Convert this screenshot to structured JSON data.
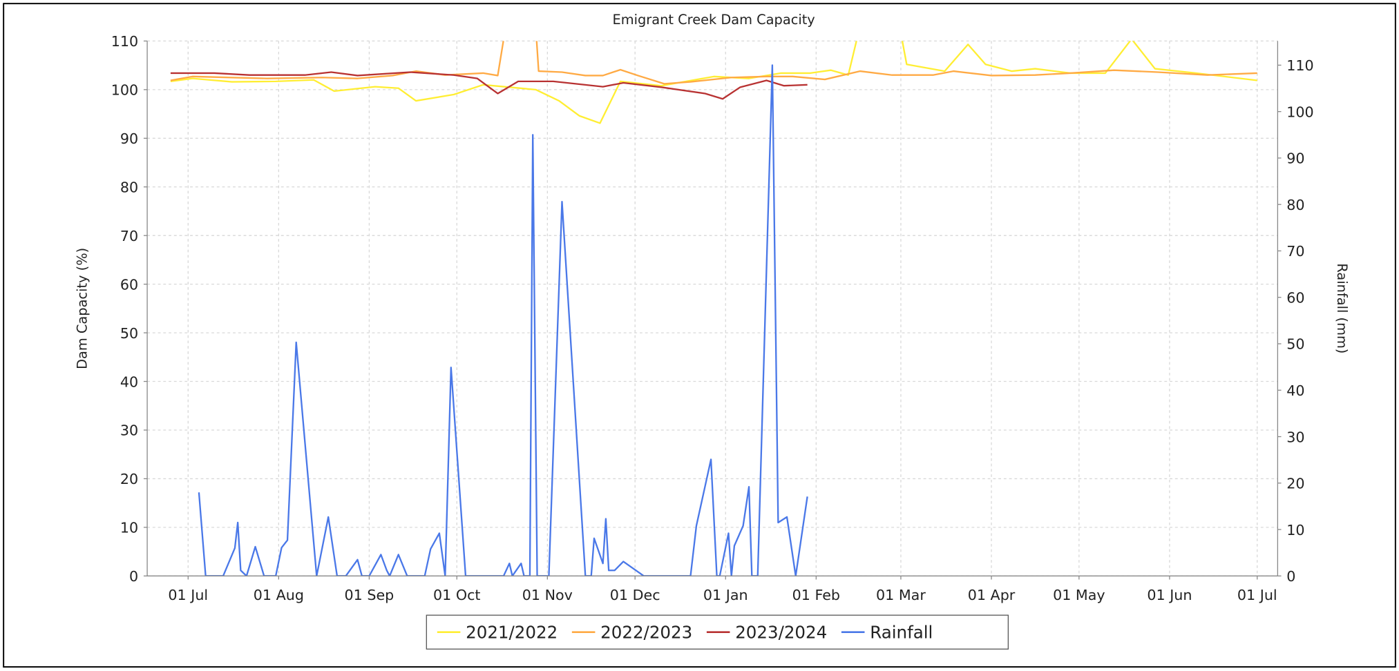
{
  "chart_data": {
    "type": "line",
    "title": "Emigrant Creek Dam Capacity",
    "y_label": "Dam Capacity (%)",
    "y2_label": "Rainfall (mm)",
    "xlim": [
      -14,
      373
    ],
    "xticks": [
      {
        "value": 0,
        "label": "01 Jul"
      },
      {
        "value": 31,
        "label": "01 Aug"
      },
      {
        "value": 62,
        "label": "01 Sep"
      },
      {
        "value": 92,
        "label": "01 Oct"
      },
      {
        "value": 123,
        "label": "01 Nov"
      },
      {
        "value": 153,
        "label": "01 Dec"
      },
      {
        "value": 184,
        "label": "01 Jan"
      },
      {
        "value": 215,
        "label": "01 Feb"
      },
      {
        "value": 244,
        "label": "01 Mar"
      },
      {
        "value": 275,
        "label": "01 Apr"
      },
      {
        "value": 305,
        "label": "01 May"
      },
      {
        "value": 336,
        "label": "01 Jun"
      },
      {
        "value": 366,
        "label": "01 Jul"
      }
    ],
    "ylim": [
      0,
      110
    ],
    "yticks": [
      0,
      10,
      20,
      30,
      40,
      50,
      60,
      70,
      80,
      90,
      100,
      110
    ],
    "y2lim": [
      0,
      115.2
    ],
    "y2ticks": [
      0,
      10,
      20,
      30,
      40,
      50,
      60,
      70,
      80,
      90,
      100,
      110
    ],
    "grid": true,
    "legend": "bottom",
    "series": [
      {
        "name": "2021/2022",
        "color": "#ffee33",
        "axis": "y",
        "x": [
          -6,
          1.5,
          15,
          30,
          43,
          50,
          64,
          72,
          78,
          91,
          101,
          119,
          127,
          134,
          141,
          148,
          162,
          180,
          192,
          203,
          213,
          220,
          226,
          232,
          242,
          246,
          259,
          267,
          273,
          282,
          290,
          302,
          314,
          323,
          331,
          345,
          366
        ],
        "values": [
          101.7,
          102.3,
          101.6,
          101.7,
          102,
          99.7,
          100.6,
          100.3,
          97.7,
          99,
          101,
          100,
          97.7,
          94.6,
          93.1,
          101.7,
          100.8,
          102.7,
          102.3,
          103.4,
          103.4,
          104,
          103,
          118,
          118,
          105.2,
          103.8,
          109.3,
          105.2,
          103.8,
          104.3,
          103.4,
          103.4,
          110.4,
          104.3,
          103.4,
          101.9
        ]
      },
      {
        "name": "2022/2023",
        "color": "#ffaa44",
        "axis": "y",
        "x": [
          -6,
          1.5,
          27,
          46,
          58,
          70,
          78,
          88,
          101,
          106,
          112,
          118,
          120,
          128,
          136,
          142,
          148,
          154,
          163,
          172,
          186,
          198,
          207,
          218,
          230,
          241,
          255,
          262,
          275,
          290,
          302,
          317,
          332,
          349,
          366
        ],
        "values": [
          101.9,
          102.7,
          102.3,
          102.5,
          102.3,
          102.9,
          103.8,
          103,
          103.4,
          102.9,
          125,
          122,
          103.8,
          103.6,
          102.9,
          102.9,
          104.1,
          102.9,
          101.2,
          101.6,
          102.5,
          102.7,
          102.7,
          102.1,
          103.8,
          103,
          103,
          103.8,
          102.9,
          103,
          103.4,
          104,
          103.6,
          103,
          103.4
        ]
      },
      {
        "name": "2023/2024",
        "color": "#b83232",
        "axis": "y",
        "x": [
          -6,
          9,
          21,
          40,
          49,
          58,
          76,
          91,
          99,
          106,
          113,
          125,
          142,
          149,
          162,
          177,
          183,
          189,
          198,
          204,
          212
        ],
        "values": [
          103.4,
          103.4,
          103,
          103,
          103.6,
          102.9,
          103.6,
          103,
          102.3,
          99.2,
          101.7,
          101.7,
          100.6,
          101.4,
          100.5,
          99.2,
          98.1,
          100.5,
          101.9,
          100.8,
          101
        ]
      },
      {
        "name": "Rainfall",
        "color": "#4a78e8",
        "axis": "y2",
        "x": [
          3.7,
          6,
          12,
          16,
          17,
          18,
          20,
          23,
          26,
          30,
          32,
          34,
          37,
          44,
          48,
          51,
          54,
          58,
          59.5,
          62,
          66,
          68,
          69,
          72,
          75,
          81,
          83,
          86,
          88,
          90,
          95,
          108,
          110,
          111,
          114,
          115,
          117,
          118,
          119.5,
          123.5,
          128,
          136,
          138,
          139,
          142,
          143,
          144,
          146,
          149,
          156,
          172,
          174,
          179,
          181,
          182,
          185,
          186,
          187,
          190,
          192,
          193,
          195,
          200,
          202,
          205,
          208,
          212
        ],
        "values": [
          18,
          0,
          0,
          6,
          11.5,
          1.2,
          0,
          6.3,
          0,
          0,
          6.1,
          7.7,
          50.3,
          0,
          12.7,
          0,
          0,
          3.5,
          0,
          0,
          4.6,
          1.2,
          0,
          4.6,
          0,
          0,
          5.8,
          9.2,
          0,
          44.9,
          0,
          0,
          2.7,
          0,
          2.7,
          0,
          0,
          95,
          0,
          0,
          80.6,
          0,
          0,
          8.1,
          2.7,
          12.3,
          1.2,
          1.2,
          3.1,
          0,
          0,
          10.8,
          25.1,
          0,
          0,
          9.2,
          0,
          6.5,
          10.8,
          19.2,
          0,
          0,
          110,
          11.5,
          12.7,
          0,
          17.1
        ]
      }
    ]
  }
}
